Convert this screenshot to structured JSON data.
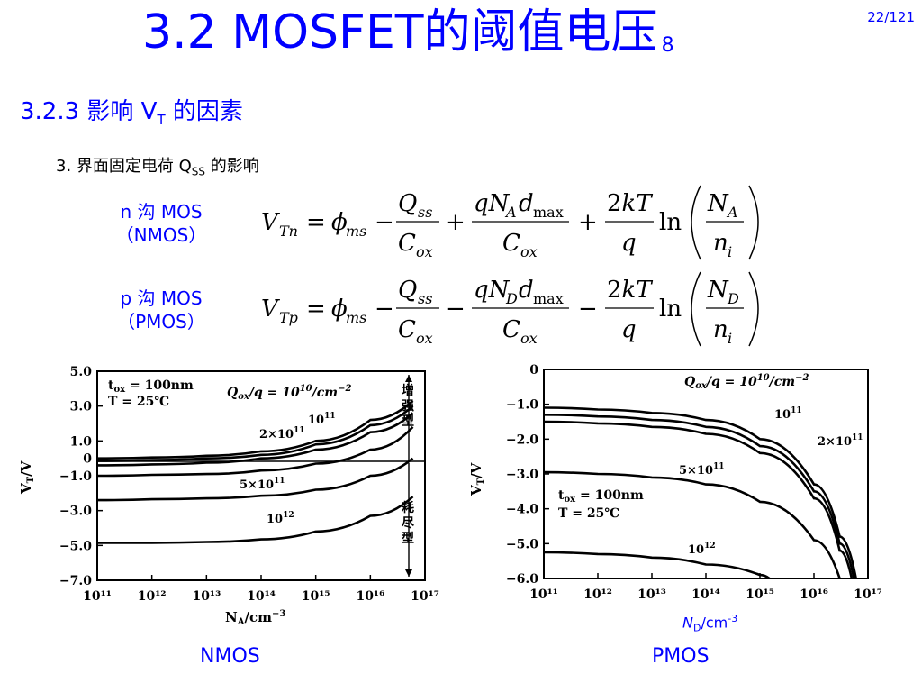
{
  "slide": {
    "title": "3.2  MOSFET的阈值电压",
    "title_sub": "8",
    "page": "22/121",
    "section_main": "3.2.3  影响 V",
    "section_sub": "T",
    "section_tail": " 的因素",
    "item_main": "3. 界面固定电荷 Q",
    "item_sub": "SS",
    "item_tail": " 的影响"
  },
  "devices": {
    "nmos_line1": "n 沟 MOS",
    "nmos_line2": "（NMOS）",
    "pmos_line1": "p 沟 MOS",
    "pmos_line2": "（PMOS）"
  },
  "equations": {
    "nmos": {
      "lhs": "V",
      "lhs_sub": "Tn",
      "phi_sub": "ms",
      "q_sub": "ss",
      "na_sub": "A",
      "dmax": "max",
      "c_sub": "ox",
      "ln": "ln",
      "ni_sub": "i",
      "op2": "+",
      "op3": "+"
    },
    "pmos": {
      "lhs": "V",
      "lhs_sub": "Tp",
      "phi_sub": "ms",
      "q_sub": "ss",
      "na_sub": "D",
      "dmax": "max",
      "c_sub": "ox",
      "ln": "ln",
      "ni_sub": "i",
      "op2": "−",
      "op3": "−"
    }
  },
  "captions": {
    "nmos": "NMOS",
    "pmos": "PMOS",
    "pmos_xlabel_main": "N",
    "pmos_xlabel_sub": "D",
    "pmos_xlabel_tail": "/cm",
    "pmos_xlabel_sup": "-3"
  },
  "chart_data": [
    {
      "type": "line",
      "title": "NMOS",
      "xlabel": "N_A/cm^-3",
      "ylabel": "V_T/V",
      "x_scale": "log",
      "xlim": [
        100000000000.0,
        1e+17
      ],
      "ylim": [
        -7.0,
        5.0
      ],
      "x_ticks": [
        "10¹¹",
        "10¹²",
        "10¹³",
        "10¹⁴",
        "10¹⁵",
        "10¹⁶",
        "10¹⁷"
      ],
      "y_ticks": [
        "5.0",
        "3.0",
        "1.0",
        "0",
        "−1.0",
        "−3.0",
        "−5.0",
        "−7.0"
      ],
      "annotations": [
        "t_ox = 100nm",
        "T = 25℃",
        "Q_ox/q = 10^10/cm^-2",
        "增强型",
        "耗尽型"
      ],
      "series": [
        {
          "name": "10¹⁰",
          "x": [
            100000000000.0,
            1000000000000.0,
            10000000000000.0,
            100000000000000.0,
            1000000000000000.0,
            1e+16,
            6e+16
          ],
          "y": [
            0.0,
            0.05,
            0.15,
            0.4,
            1.0,
            2.2,
            3.3
          ]
        },
        {
          "name": "10¹¹",
          "x": [
            100000000000.0,
            1000000000000.0,
            10000000000000.0,
            100000000000000.0,
            1000000000000000.0,
            1e+16,
            6e+16
          ],
          "y": [
            -0.15,
            -0.1,
            0.0,
            0.2,
            0.8,
            1.9,
            3.0
          ]
        },
        {
          "name": "2×10¹¹",
          "x": [
            100000000000.0,
            1000000000000.0,
            10000000000000.0,
            100000000000000.0,
            1000000000000000.0,
            1e+16,
            6e+16
          ],
          "y": [
            -0.4,
            -0.35,
            -0.25,
            0.0,
            0.5,
            1.5,
            2.6
          ]
        },
        {
          "name": "5×10¹¹",
          "x": [
            100000000000.0,
            1000000000000.0,
            10000000000000.0,
            100000000000000.0,
            1000000000000000.0,
            1e+16,
            6e+16
          ],
          "y": [
            -1.0,
            -0.95,
            -0.9,
            -0.7,
            -0.3,
            0.5,
            1.8
          ]
        },
        {
          "name": "10¹²",
          "x": [
            100000000000.0,
            1000000000000.0,
            10000000000000.0,
            100000000000000.0,
            1000000000000000.0,
            1e+16,
            6e+16
          ],
          "y": [
            -2.4,
            -2.35,
            -2.3,
            -2.15,
            -1.8,
            -1.0,
            0.0
          ]
        },
        {
          "name": "",
          "x": [
            100000000000.0,
            1000000000000.0,
            10000000000000.0,
            100000000000000.0,
            1000000000000000.0,
            1e+16,
            6e+16
          ],
          "y": [
            -4.85,
            -4.85,
            -4.8,
            -4.65,
            -4.2,
            -3.3,
            -2.2
          ]
        }
      ]
    },
    {
      "type": "line",
      "title": "PMOS",
      "xlabel": "N_D/cm^-3",
      "ylabel": "V_T/V",
      "x_scale": "log",
      "xlim": [
        100000000000.0,
        1e+17
      ],
      "ylim": [
        -6.0,
        0
      ],
      "x_ticks": [
        "10¹¹",
        "10¹²",
        "10¹³",
        "10¹⁴",
        "10¹⁵",
        "10¹⁶",
        "10¹⁷"
      ],
      "y_ticks": [
        "0",
        "−1.0",
        "−2.0",
        "−3.0",
        "−4.0",
        "−5.0",
        "−6.0"
      ],
      "annotations": [
        "t_ox = 100nm",
        "T = 25℃",
        "Q_ox/q = 10^10/cm^-2"
      ],
      "series": [
        {
          "name": "10¹⁰",
          "x": [
            100000000000.0,
            1000000000000.0,
            10000000000000.0,
            100000000000000.0,
            1000000000000000.0,
            1e+16,
            3e+16,
            6e+16
          ],
          "y": [
            -1.1,
            -1.15,
            -1.25,
            -1.45,
            -2.0,
            -3.3,
            -4.8,
            -6.0
          ]
        },
        {
          "name": "10¹¹",
          "x": [
            100000000000.0,
            1000000000000.0,
            10000000000000.0,
            100000000000000.0,
            1000000000000000.0,
            1e+16,
            3e+16,
            5.5e+16
          ],
          "y": [
            -1.3,
            -1.35,
            -1.45,
            -1.65,
            -2.2,
            -3.5,
            -5.0,
            -6.0
          ]
        },
        {
          "name": "2×10¹¹",
          "x": [
            100000000000.0,
            1000000000000.0,
            10000000000000.0,
            100000000000000.0,
            1000000000000000.0,
            1e+16,
            3e+16,
            5e+16
          ],
          "y": [
            -1.5,
            -1.55,
            -1.65,
            -1.85,
            -2.4,
            -3.7,
            -5.2,
            -6.0
          ]
        },
        {
          "name": "5×10¹¹",
          "x": [
            100000000000.0,
            1000000000000.0,
            10000000000000.0,
            100000000000000.0,
            1000000000000000.0,
            1e+16,
            3e+16
          ],
          "y": [
            -2.95,
            -3.0,
            -3.1,
            -3.3,
            -3.8,
            -4.9,
            -6.0
          ]
        },
        {
          "name": "10¹²",
          "x": [
            100000000000.0,
            1000000000000.0,
            10000000000000.0,
            100000000000000.0,
            1000000000000000.0,
            1500000000000000.0
          ],
          "y": [
            -5.25,
            -5.3,
            -5.4,
            -5.6,
            -5.9,
            -6.0
          ]
        }
      ]
    }
  ]
}
